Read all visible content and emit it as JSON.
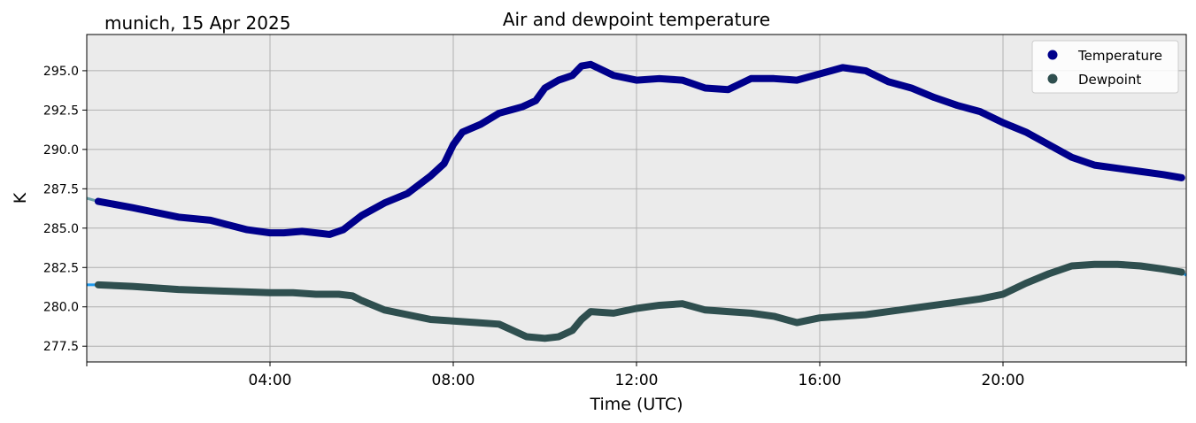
{
  "header": {
    "location_date": "munich, 15 Apr 2025",
    "title": "Air and dewpoint temperature"
  },
  "chart_data": {
    "type": "line",
    "title": "Air and dewpoint temperature",
    "xlabel": "Time (UTC)",
    "ylabel": "K",
    "x_unit": "hours UTC",
    "xlim": [
      0,
      24
    ],
    "ylim": [
      276.5,
      297.3
    ],
    "xticks": [
      {
        "value": 4,
        "label": "04:00"
      },
      {
        "value": 8,
        "label": "08:00"
      },
      {
        "value": 12,
        "label": "12:00"
      },
      {
        "value": 16,
        "label": "16:00"
      },
      {
        "value": 20,
        "label": "20:00"
      }
    ],
    "yticks": [
      {
        "value": 277.5,
        "label": "277.5"
      },
      {
        "value": 280.0,
        "label": "280.0"
      },
      {
        "value": 282.5,
        "label": "282.5"
      },
      {
        "value": 285.0,
        "label": "285.0"
      },
      {
        "value": 287.5,
        "label": "287.5"
      },
      {
        "value": 290.0,
        "label": "290.0"
      },
      {
        "value": 292.5,
        "label": "292.5"
      },
      {
        "value": 295.0,
        "label": "295.0"
      }
    ],
    "grid": true,
    "legend": "top-right",
    "background": "#ebebeb",
    "series": [
      {
        "name": "Temperature",
        "color": "#00008b",
        "raw_color": "#6a9fa8",
        "x": [
          0.25,
          1,
          2,
          2.7,
          3.5,
          4,
          4.3,
          4.7,
          5.0,
          5.3,
          5.6,
          6,
          6.5,
          7,
          7.5,
          7.8,
          8,
          8.2,
          8.6,
          9,
          9.5,
          9.8,
          10,
          10.3,
          10.6,
          10.8,
          11,
          11.5,
          12,
          12.5,
          13,
          13.5,
          14,
          14.5,
          15,
          15.5,
          16,
          16.5,
          17,
          17.5,
          18,
          18.5,
          19,
          19.5,
          20,
          20.5,
          21,
          21.5,
          22,
          22.5,
          23,
          23.5,
          23.9
        ],
        "y": [
          286.7,
          286.3,
          285.7,
          285.5,
          284.9,
          284.7,
          284.7,
          284.8,
          284.7,
          284.6,
          284.9,
          285.8,
          286.6,
          287.2,
          288.3,
          289.1,
          290.3,
          291.1,
          291.6,
          292.3,
          292.7,
          293.1,
          293.9,
          294.4,
          294.7,
          295.3,
          295.4,
          294.7,
          294.4,
          294.5,
          294.4,
          293.9,
          293.8,
          294.5,
          294.5,
          294.4,
          294.8,
          295.2,
          295.0,
          294.3,
          293.9,
          293.3,
          292.8,
          292.4,
          291.7,
          291.1,
          290.3,
          289.5,
          289.0,
          288.8,
          288.6,
          288.4,
          288.2
        ],
        "raw_x": [
          0,
          0.25
        ],
        "raw_y": [
          286.9,
          286.7
        ]
      },
      {
        "name": "Dewpoint",
        "color": "#2f4f4f",
        "raw_color": "#1e9bef",
        "x": [
          0.25,
          1,
          2,
          3,
          4,
          4.5,
          5,
          5.5,
          5.8,
          6,
          6.5,
          7,
          7.5,
          8,
          8.5,
          9,
          9.3,
          9.6,
          10,
          10.3,
          10.6,
          10.8,
          11,
          11.5,
          12,
          12.5,
          13,
          13.5,
          14,
          14.5,
          15,
          15.5,
          16,
          16.5,
          17,
          17.5,
          18,
          18.5,
          19,
          19.5,
          20,
          20.5,
          21,
          21.5,
          22,
          22.5,
          23,
          23.5,
          23.9
        ],
        "y": [
          281.4,
          281.3,
          281.1,
          281.0,
          280.9,
          280.9,
          280.8,
          280.8,
          280.7,
          280.4,
          279.8,
          279.5,
          279.2,
          279.1,
          279.0,
          278.9,
          278.5,
          278.1,
          278.0,
          278.1,
          278.5,
          279.2,
          279.7,
          279.6,
          279.9,
          280.1,
          280.2,
          279.8,
          279.7,
          279.6,
          279.4,
          279.0,
          279.3,
          279.4,
          279.5,
          279.7,
          279.9,
          280.1,
          280.3,
          280.5,
          280.8,
          281.5,
          282.1,
          282.6,
          282.7,
          282.7,
          282.6,
          282.4,
          282.2
        ],
        "raw_x": [
          0,
          0.25,
          23.9,
          24
        ],
        "raw_y": [
          281.4,
          281.4,
          282.2,
          282.0
        ]
      }
    ]
  }
}
